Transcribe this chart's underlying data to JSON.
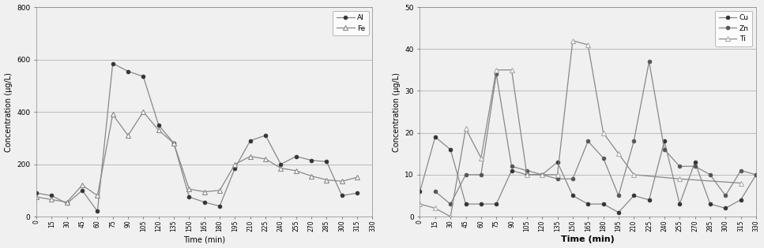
{
  "time": [
    0,
    15,
    30,
    45,
    60,
    75,
    90,
    105,
    120,
    135,
    150,
    165,
    180,
    195,
    210,
    225,
    240,
    255,
    270,
    285,
    300,
    315,
    330
  ],
  "Al": [
    90,
    80,
    50,
    100,
    20,
    585,
    555,
    535,
    350,
    280,
    75,
    55,
    40,
    185,
    290,
    310,
    200,
    230,
    215,
    210,
    80,
    90,
    null
  ],
  "Fe": [
    75,
    65,
    55,
    120,
    80,
    390,
    310,
    400,
    330,
    280,
    105,
    95,
    100,
    200,
    230,
    220,
    185,
    175,
    155,
    140,
    135,
    150,
    null
  ],
  "Cu": [
    6,
    19,
    16,
    3,
    3,
    3,
    11,
    10,
    10,
    13,
    5,
    3,
    3,
    1,
    5,
    4,
    18,
    3,
    13,
    3,
    2,
    4,
    10
  ],
  "Zn": [
    null,
    6,
    3,
    10,
    10,
    34,
    12,
    11,
    10,
    9,
    9,
    18,
    14,
    5,
    18,
    37,
    16,
    12,
    12,
    10,
    5,
    11,
    10
  ],
  "Ti": [
    3,
    2,
    0,
    21,
    14,
    35,
    35,
    10,
    10,
    10,
    42,
    41,
    20,
    15,
    10,
    null,
    null,
    9,
    null,
    null,
    null,
    8,
    null
  ],
  "left_ylabel": "Concentration (μg/L)",
  "right_ylabel": "Concentration (μg/L)",
  "left_xlabel": "Time (min)",
  "right_xlabel": "Time (min)",
  "left_ylim": [
    0,
    800
  ],
  "right_ylim": [
    0,
    50
  ],
  "left_yticks": [
    0,
    200,
    400,
    600,
    800
  ],
  "right_yticks": [
    0,
    10,
    20,
    30,
    40,
    50
  ],
  "xticks": [
    0,
    15,
    30,
    45,
    60,
    75,
    90,
    105,
    120,
    135,
    150,
    165,
    180,
    195,
    210,
    225,
    240,
    255,
    270,
    285,
    300,
    315,
    330
  ],
  "line_color": "#888888",
  "Al_marker_color": "#333333",
  "Fe_marker_color": "#888888",
  "Cu_marker_color": "#333333",
  "Zn_marker_color": "#555555",
  "Ti_marker_color": "#aaaaaa",
  "bg_color": "#f0f0f0",
  "grid_color": "#bbbbbb",
  "spine_color": "#888888"
}
